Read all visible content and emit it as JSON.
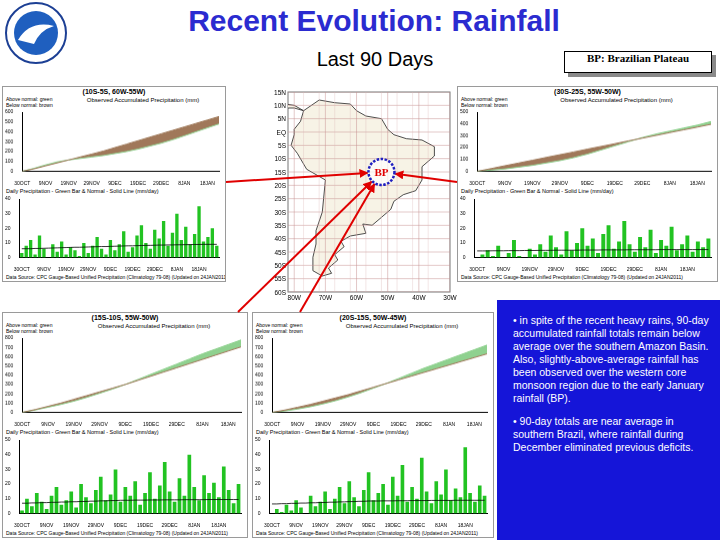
{
  "page": {
    "title": "Recent Evolution: Rainfall",
    "subtitle": "Last 90 Days",
    "key": "BP: Brazilian Plateau",
    "bullets": [
      "• in spite of the recent heavy rains, 90-day accumulated rainfall totals remain below average over the southern Amazon Basin. Also, slightly-above-average rainfall has been observed over the western core monsoon region due to the early January rainfall (BP).",
      "• 90-day totals are near average in southern Brazil, where rainfall during December eliminated previous deficits."
    ]
  },
  "map": {
    "lat_labels": [
      "15N",
      "10N",
      "5N",
      "EQ",
      "5S",
      "10S",
      "15S",
      "20S",
      "25S",
      "30S",
      "35S",
      "40S",
      "45S",
      "50S",
      "55S",
      "60S"
    ],
    "lon_labels": [
      "80W",
      "70W",
      "60W",
      "50W",
      "40W",
      "30W"
    ],
    "region_label": "BP"
  },
  "chart_data": [
    {
      "type": "area",
      "title": "(10S-5S, 60W-55W)",
      "subtitle": "Observed Accumulated Precipitation (mm)",
      "annotations": [
        "Above normal: green",
        "Below normal: brown"
      ],
      "categories": [
        "30OCT",
        null,
        "9NOV",
        null,
        "19NOV",
        null,
        "29NOV",
        null,
        "9DEC",
        null,
        "19DEC",
        null,
        "29DEC",
        null,
        "8JAN",
        null,
        "18JAN",
        null
      ],
      "series": [
        {
          "color": "#a0785a",
          "values": [
            0,
            25,
            55,
            85,
            115,
            145,
            175,
            205,
            240,
            275,
            310,
            345,
            380,
            415,
            450,
            485,
            520,
            555
          ]
        },
        {
          "color": "#8fd18f",
          "values": [
            0,
            30,
            65,
            95,
            115,
            130,
            145,
            160,
            180,
            200,
            225,
            255,
            285,
            320,
            360,
            400,
            440,
            480
          ]
        }
      ],
      "ylim": [
        0,
        600
      ],
      "yticks": [
        0,
        100,
        200,
        300,
        400,
        500,
        600
      ],
      "grid": false
    },
    {
      "type": "bar",
      "title": "Daily Precipitation - Green Bar & Normal - Solid Line (mm/day)",
      "annotations": [
        "Data Source: CPC Gauge-Based Unified Precipitation (Climatology 79-08)",
        "(Updated on 24JAN2011)"
      ],
      "categories": [
        "30OCT",
        null,
        null,
        null,
        null,
        "9NOV",
        null,
        null,
        null,
        null,
        "19NOV",
        null,
        null,
        null,
        null,
        "29NOV",
        null,
        null,
        null,
        null,
        "9DEC",
        null,
        null,
        null,
        null,
        "19DEC",
        null,
        null,
        null,
        null,
        "29DEC",
        null,
        null,
        null,
        null,
        "8JAN",
        null,
        null,
        null,
        null,
        "18JAN",
        null,
        null,
        null,
        null
      ],
      "series": [
        {
          "type": "bar",
          "color": "#22c322",
          "values": [
            3,
            8,
            12,
            2,
            15,
            6,
            0,
            9,
            4,
            11,
            2,
            7,
            5,
            1,
            10,
            3,
            8,
            14,
            6,
            2,
            12,
            5,
            9,
            18,
            4,
            7,
            15,
            22,
            10,
            6,
            19,
            13,
            25,
            8,
            17,
            30,
            12,
            21,
            9,
            16,
            35,
            11,
            14,
            20,
            8
          ]
        },
        {
          "type": "line",
          "color": "#000000",
          "values": [
            6,
            6,
            6,
            6.2,
            6.2,
            6.3,
            6.4,
            6.5,
            6.6,
            6.7,
            6.8,
            6.9,
            7,
            7,
            7.1,
            7.2,
            7.3,
            7.4,
            7.5,
            7.5,
            7.6,
            7.7,
            7.8,
            7.9,
            8,
            8,
            8.1,
            8.2,
            8.3,
            8.3,
            8.4,
            8.5,
            8.5,
            8.6,
            8.6,
            8.7,
            8.7,
            8.8,
            8.8,
            8.9,
            8.9,
            9,
            9,
            9,
            9
          ]
        }
      ],
      "ylim": [
        0,
        40
      ],
      "yticks": [
        0,
        10,
        20,
        30,
        40
      ],
      "grid": false
    },
    {
      "type": "area",
      "title": "(30S-25S, 55W-50W)",
      "subtitle": "Observed Accumulated Precipitation (mm)",
      "annotations": [
        "Above normal: green",
        "Below normal: brown"
      ],
      "categories": [
        "30OCT",
        null,
        "9NOV",
        null,
        "19NOV",
        null,
        "29NOV",
        null,
        "9DEC",
        null,
        "19DEC",
        null,
        "29DEC",
        null,
        "8JAN",
        null,
        "18JAN",
        null
      ],
      "series": [
        {
          "color": "#a0785a",
          "values": [
            0,
            23,
            47,
            70,
            93,
            117,
            140,
            163,
            187,
            210,
            233,
            257,
            280,
            303,
            327,
            350,
            373,
            397
          ]
        },
        {
          "color": "#8fd18f",
          "values": [
            0,
            10,
            20,
            35,
            50,
            70,
            90,
            115,
            145,
            180,
            215,
            250,
            285,
            315,
            340,
            365,
            390,
            420
          ]
        }
      ],
      "ylim": [
        0,
        500
      ],
      "yticks": [
        0,
        100,
        200,
        300,
        400,
        500
      ],
      "grid": false
    },
    {
      "type": "bar",
      "title": "Daily Precipitation - Green Bar & Normal - Solid Line (mm/day)",
      "annotations": [
        "Data Source: CPC Gauge-Based Unified Precipitation (Climatology 79-08)",
        "(Updated on 24JAN2011)"
      ],
      "categories": [
        "30OCT",
        null,
        null,
        null,
        null,
        "9NOV",
        null,
        null,
        null,
        null,
        "19NOV",
        null,
        null,
        null,
        null,
        "29NOV",
        null,
        null,
        null,
        null,
        "9DEC",
        null,
        null,
        null,
        null,
        "19DEC",
        null,
        null,
        null,
        null,
        "29DEC",
        null,
        null,
        null,
        null,
        "8JAN",
        null,
        null,
        null,
        null,
        "18JAN",
        null,
        null,
        null,
        null
      ],
      "series": [
        {
          "type": "bar",
          "color": "#22c322",
          "values": [
            0,
            2,
            5,
            1,
            8,
            0,
            3,
            12,
            1,
            0,
            6,
            2,
            9,
            4,
            15,
            7,
            2,
            18,
            5,
            10,
            20,
            8,
            13,
            3,
            16,
            22,
            6,
            11,
            25,
            9,
            4,
            14,
            7,
            19,
            3,
            12,
            8,
            21,
            5,
            9,
            15,
            4,
            11,
            7,
            13
          ]
        },
        {
          "type": "line",
          "color": "#000000",
          "values": [
            4.5,
            4.5,
            4.5,
            4.6,
            4.6,
            4.6,
            4.7,
            4.7,
            4.7,
            4.8,
            4.8,
            4.8,
            4.9,
            4.9,
            4.9,
            5,
            5,
            5,
            5,
            5,
            5.1,
            5.1,
            5.1,
            5.1,
            5.2,
            5.2,
            5.2,
            5.2,
            5.2,
            5.3,
            5.3,
            5.3,
            5.3,
            5.3,
            5.3,
            5.4,
            5.4,
            5.4,
            5.4,
            5.4,
            5.4,
            5.4,
            5.4,
            5.4,
            5.4
          ]
        }
      ],
      "ylim": [
        0,
        40
      ],
      "yticks": [
        0,
        10,
        20,
        30,
        40
      ],
      "grid": false
    },
    {
      "type": "area",
      "title": "(15S-10S, 55W-50W)",
      "subtitle": "Observed Accumulated Precipitation (mm)",
      "annotations": [
        "Above normal: green",
        "Below normal: brown"
      ],
      "categories": [
        "30OCT",
        null,
        "9NOV",
        null,
        "19NOV",
        null,
        "29NOV",
        null,
        "9DEC",
        null,
        "19DEC",
        null,
        "29DEC",
        null,
        "8JAN",
        null,
        "18JAN",
        null
      ],
      "series": [
        {
          "color": "#a0785a",
          "values": [
            0,
            30,
            65,
            100,
            140,
            180,
            220,
            260,
            300,
            345,
            390,
            435,
            480,
            525,
            570,
            615,
            660,
            705
          ]
        },
        {
          "color": "#8fd18f",
          "values": [
            0,
            25,
            55,
            85,
            120,
            160,
            205,
            250,
            300,
            355,
            410,
            465,
            520,
            575,
            630,
            680,
            730,
            780
          ]
        }
      ],
      "ylim": [
        0,
        800
      ],
      "yticks": [
        0,
        100,
        200,
        300,
        400,
        500,
        600,
        700,
        800
      ],
      "grid": false
    },
    {
      "type": "bar",
      "title": "Daily Precipitation - Green Bar & Normal - Solid Line (mm/day)",
      "annotations": [
        "Data Source: CPC Gauge-Based Unified Precipitation (Climatology 79-08)",
        "(Updated on 24JAN2011)"
      ],
      "categories": [
        "30OCT",
        null,
        null,
        null,
        null,
        "9NOV",
        null,
        null,
        null,
        null,
        "19NOV",
        null,
        null,
        null,
        null,
        "29NOV",
        null,
        null,
        null,
        null,
        "9DEC",
        null,
        null,
        null,
        null,
        "19DEC",
        null,
        null,
        null,
        null,
        "29DEC",
        null,
        null,
        null,
        null,
        "8JAN",
        null,
        null,
        null,
        null,
        "18JAN",
        null,
        null,
        null,
        null
      ],
      "series": [
        {
          "type": "bar",
          "color": "#22c322",
          "values": [
            2,
            10,
            5,
            14,
            8,
            3,
            12,
            18,
            6,
            9,
            15,
            4,
            20,
            11,
            7,
            16,
            25,
            9,
            13,
            30,
            8,
            18,
            12,
            22,
            6,
            14,
            28,
            10,
            19,
            35,
            15,
            8,
            24,
            12,
            40,
            18,
            9,
            26,
            14,
            21,
            11,
            32,
            16,
            7,
            20
          ]
        },
        {
          "type": "line",
          "color": "#000000",
          "values": [
            7,
            7,
            7.2,
            7.2,
            7.4,
            7.4,
            7.6,
            7.6,
            7.8,
            7.8,
            8,
            8,
            8.2,
            8.2,
            8.4,
            8.4,
            8.6,
            8.6,
            8.8,
            8.8,
            9,
            9,
            9,
            9.1,
            9.1,
            9.1,
            9.2,
            9.2,
            9.2,
            9.3,
            9.3,
            9.3,
            9.3,
            9.4,
            9.4,
            9.4,
            9.4,
            9.4,
            9.5,
            9.5,
            9.5,
            9.5,
            9.5,
            9.5,
            9.5
          ]
        }
      ],
      "ylim": [
        0,
        50
      ],
      "yticks": [
        0,
        10,
        20,
        30,
        40,
        50
      ],
      "grid": false
    },
    {
      "type": "area",
      "title": "(20S-15S, 50W-45W)",
      "subtitle": "Observed Accumulated Precipitation (mm)",
      "annotations": [
        "Above normal: green",
        "Below normal: brown"
      ],
      "categories": [
        "30OCT",
        null,
        "9NOV",
        null,
        "19NOV",
        null,
        "29NOV",
        null,
        "9DEC",
        null,
        "19DEC",
        null,
        "29DEC",
        null,
        "8JAN",
        null,
        "18JAN",
        null
      ],
      "series": [
        {
          "color": "#a0785a",
          "values": [
            0,
            25,
            55,
            85,
            120,
            155,
            190,
            230,
            270,
            310,
            350,
            390,
            430,
            470,
            510,
            550,
            590,
            630
          ]
        },
        {
          "color": "#8fd18f",
          "values": [
            0,
            15,
            35,
            60,
            90,
            125,
            165,
            210,
            260,
            310,
            365,
            420,
            475,
            525,
            575,
            625,
            675,
            725
          ]
        }
      ],
      "ylim": [
        0,
        800
      ],
      "yticks": [
        0,
        100,
        200,
        300,
        400,
        500,
        600,
        700,
        800
      ],
      "grid": false
    },
    {
      "type": "bar",
      "title": "Daily Precipitation - Green Bar & Normal - Solid Line (mm/day)",
      "annotations": [
        "Data Source: CPC Gauge-Based Unified Precipitation (Climatology 79-08)",
        "(Updated on 24JAN2011)"
      ],
      "categories": [
        "30OCT",
        null,
        null,
        null,
        null,
        "9NOV",
        null,
        null,
        null,
        null,
        "19NOV",
        null,
        null,
        null,
        null,
        "29NOV",
        null,
        null,
        null,
        null,
        "9DEC",
        null,
        null,
        null,
        null,
        "19DEC",
        null,
        null,
        null,
        null,
        "29DEC",
        null,
        null,
        null,
        null,
        "8JAN",
        null,
        null,
        null,
        null,
        "18JAN",
        null,
        null,
        null,
        null
      ],
      "series": [
        {
          "type": "bar",
          "color": "#22c322",
          "values": [
            0,
            3,
            1,
            6,
            2,
            9,
            4,
            0,
            12,
            5,
            8,
            15,
            3,
            10,
            18,
            7,
            22,
            11,
            5,
            16,
            28,
            9,
            14,
            20,
            6,
            25,
            12,
            33,
            8,
            18,
            10,
            38,
            15,
            7,
            22,
            13,
            30,
            9,
            17,
            11,
            45,
            14,
            8,
            19,
            12
          ]
        },
        {
          "type": "line",
          "color": "#000000",
          "values": [
            6.5,
            6.5,
            6.7,
            6.7,
            6.9,
            6.9,
            7.1,
            7.1,
            7.3,
            7.3,
            7.5,
            7.5,
            7.7,
            7.7,
            7.9,
            7.9,
            8.1,
            8.1,
            8.3,
            8.3,
            8.5,
            8.5,
            8.5,
            8.6,
            8.6,
            8.6,
            8.7,
            8.7,
            8.7,
            8.8,
            8.8,
            8.8,
            8.8,
            8.9,
            8.9,
            8.9,
            8.9,
            8.9,
            9,
            9,
            9,
            9,
            9,
            9,
            9
          ]
        }
      ],
      "ylim": [
        0,
        50
      ],
      "yticks": [
        0,
        10,
        20,
        30,
        40,
        50
      ],
      "grid": false
    }
  ]
}
